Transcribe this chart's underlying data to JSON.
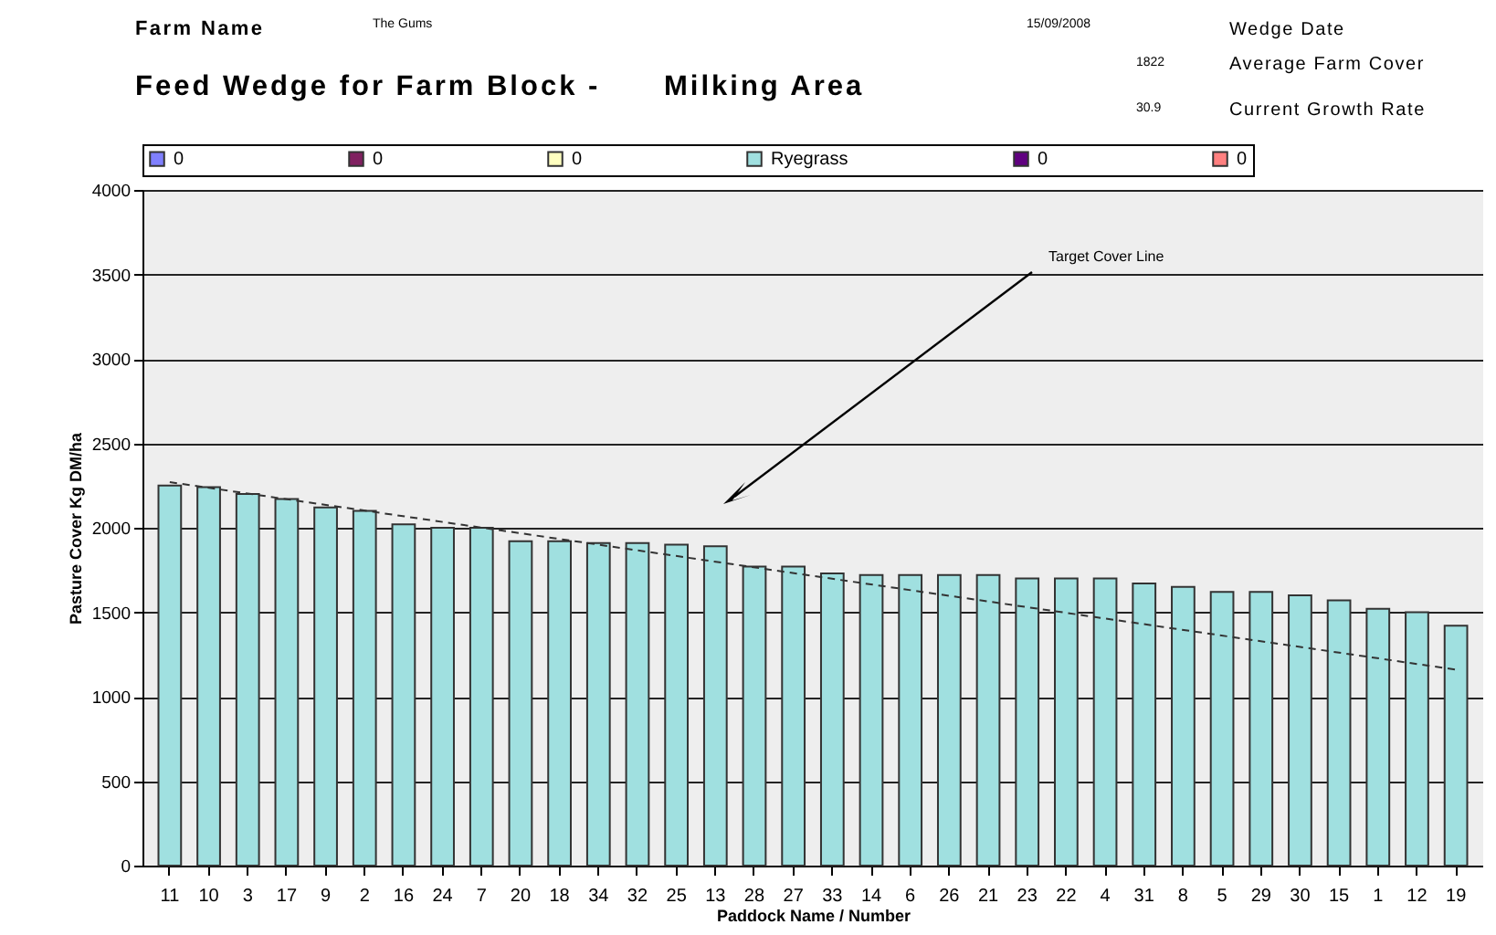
{
  "chart_data": {
    "type": "bar",
    "title": "Feed Wedge for Farm Block -      Milking Area",
    "xlabel": "Paddock Name / Number",
    "ylabel": "Pasture Cover Kg DM/ha",
    "annotations": [
      "Farm Name",
      "The Gums",
      "15/09/2008",
      "Wedge Date",
      "1822",
      "Average Farm Cover",
      "30.9",
      "Current Growth Rate",
      "Target Cover Line"
    ],
    "categories": [
      "11",
      "10",
      "3",
      "17",
      "9",
      "2",
      "16",
      "24",
      "7",
      "20",
      "18",
      "34",
      "32",
      "25",
      "13",
      "28",
      "27",
      "33",
      "14",
      "6",
      "26",
      "21",
      "23",
      "22",
      "4",
      "31",
      "8",
      "5",
      "29",
      "30",
      "15",
      "1",
      "12",
      "19"
    ],
    "series": [
      {
        "name": "0",
        "color": "#8080ff",
        "values": [
          null,
          null,
          null,
          null,
          null,
          null,
          null,
          null,
          null,
          null,
          null,
          null,
          null,
          null,
          null,
          null,
          null,
          null,
          null,
          null,
          null,
          null,
          null,
          null,
          null,
          null,
          null,
          null,
          null,
          null,
          null,
          null,
          null,
          null
        ]
      },
      {
        "name": "0",
        "color": "#802060",
        "values": [
          null,
          null,
          null,
          null,
          null,
          null,
          null,
          null,
          null,
          null,
          null,
          null,
          null,
          null,
          null,
          null,
          null,
          null,
          null,
          null,
          null,
          null,
          null,
          null,
          null,
          null,
          null,
          null,
          null,
          null,
          null,
          null,
          null,
          null
        ]
      },
      {
        "name": "0",
        "color": "#ffffc0",
        "values": [
          null,
          null,
          null,
          null,
          null,
          null,
          null,
          null,
          null,
          null,
          null,
          null,
          null,
          null,
          null,
          null,
          null,
          null,
          null,
          null,
          null,
          null,
          null,
          null,
          null,
          null,
          null,
          null,
          null,
          null,
          null,
          null,
          null,
          null
        ]
      },
      {
        "name": "Ryegrass",
        "color": "#a0e0e0",
        "values": [
          2250,
          2240,
          2200,
          2170,
          2120,
          2100,
          2020,
          2000,
          2000,
          1920,
          1920,
          1910,
          1910,
          1900,
          1890,
          1770,
          1770,
          1730,
          1720,
          1720,
          1720,
          1720,
          1700,
          1700,
          1700,
          1670,
          1650,
          1620,
          1620,
          1600,
          1570,
          1520,
          1500,
          1420
        ]
      },
      {
        "name": "0",
        "color": "#600080",
        "values": [
          null,
          null,
          null,
          null,
          null,
          null,
          null,
          null,
          null,
          null,
          null,
          null,
          null,
          null,
          null,
          null,
          null,
          null,
          null,
          null,
          null,
          null,
          null,
          null,
          null,
          null,
          null,
          null,
          null,
          null,
          null,
          null,
          null,
          null
        ]
      },
      {
        "name": "0",
        "color": "#ff8080",
        "values": [
          null,
          null,
          null,
          null,
          null,
          null,
          null,
          null,
          null,
          null,
          null,
          null,
          null,
          null,
          null,
          null,
          null,
          null,
          null,
          null,
          null,
          null,
          null,
          null,
          null,
          null,
          null,
          null,
          null,
          null,
          null,
          null,
          null,
          null
        ]
      },
      {
        "type": "line",
        "x": [
          "11",
          "19"
        ],
        "values": [
          2270,
          1160
        ],
        "color": "#333333",
        "line_style": "dashed"
      }
    ],
    "ylim": [
      0,
      4000
    ],
    "yticks": [
      0,
      500,
      1000,
      1500,
      2000,
      2500,
      3000,
      3500,
      4000
    ],
    "grid": true,
    "legend": "top"
  }
}
